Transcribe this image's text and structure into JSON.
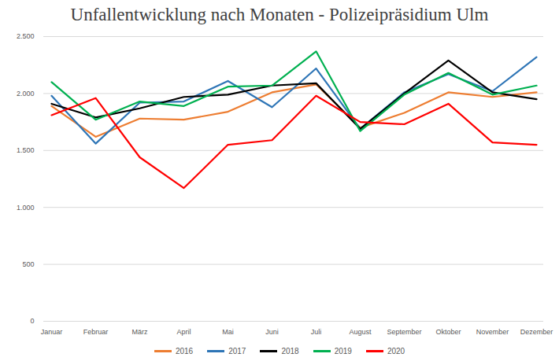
{
  "chart_data": {
    "type": "line",
    "title": "Unfallentwicklung nach Monaten - Polizeipräsidium Ulm",
    "categories": [
      "Januar",
      "Februar",
      "März",
      "April",
      "Mai",
      "Juni",
      "Juli",
      "August",
      "September",
      "Oktober",
      "November",
      "Dezember"
    ],
    "series": [
      {
        "name": "2016",
        "color": "#ED7D31",
        "values": [
          1890,
          1620,
          1780,
          1770,
          1840,
          2010,
          2080,
          1700,
          1830,
          2010,
          1970,
          2010
        ]
      },
      {
        "name": "2017",
        "color": "#2E75B6",
        "values": [
          1980,
          1560,
          1920,
          1930,
          2110,
          1880,
          2220,
          1690,
          2010,
          2170,
          2020,
          2320
        ]
      },
      {
        "name": "2018",
        "color": "#000000",
        "values": [
          1910,
          1790,
          1870,
          1970,
          1990,
          2070,
          2090,
          1690,
          2000,
          2290,
          2010,
          1950
        ]
      },
      {
        "name": "2019",
        "color": "#00B050",
        "values": [
          2100,
          1770,
          1930,
          1890,
          2060,
          2070,
          2370,
          1670,
          1990,
          2180,
          1990,
          2070
        ]
      },
      {
        "name": "2020",
        "color": "#FF0000",
        "values": [
          1810,
          1960,
          1440,
          1170,
          1550,
          1590,
          1980,
          1750,
          1730,
          1910,
          1570,
          1550
        ]
      }
    ],
    "ylim": [
      0,
      2500
    ],
    "yticks": [
      0,
      500,
      {
        "value": 1000,
        "label": "1.000"
      },
      {
        "value": 1500,
        "label": "1.500"
      },
      {
        "value": 2000,
        "label": "2.000"
      },
      {
        "value": 2500,
        "label": "2.500"
      }
    ],
    "grid": true,
    "legend": "bottom"
  }
}
